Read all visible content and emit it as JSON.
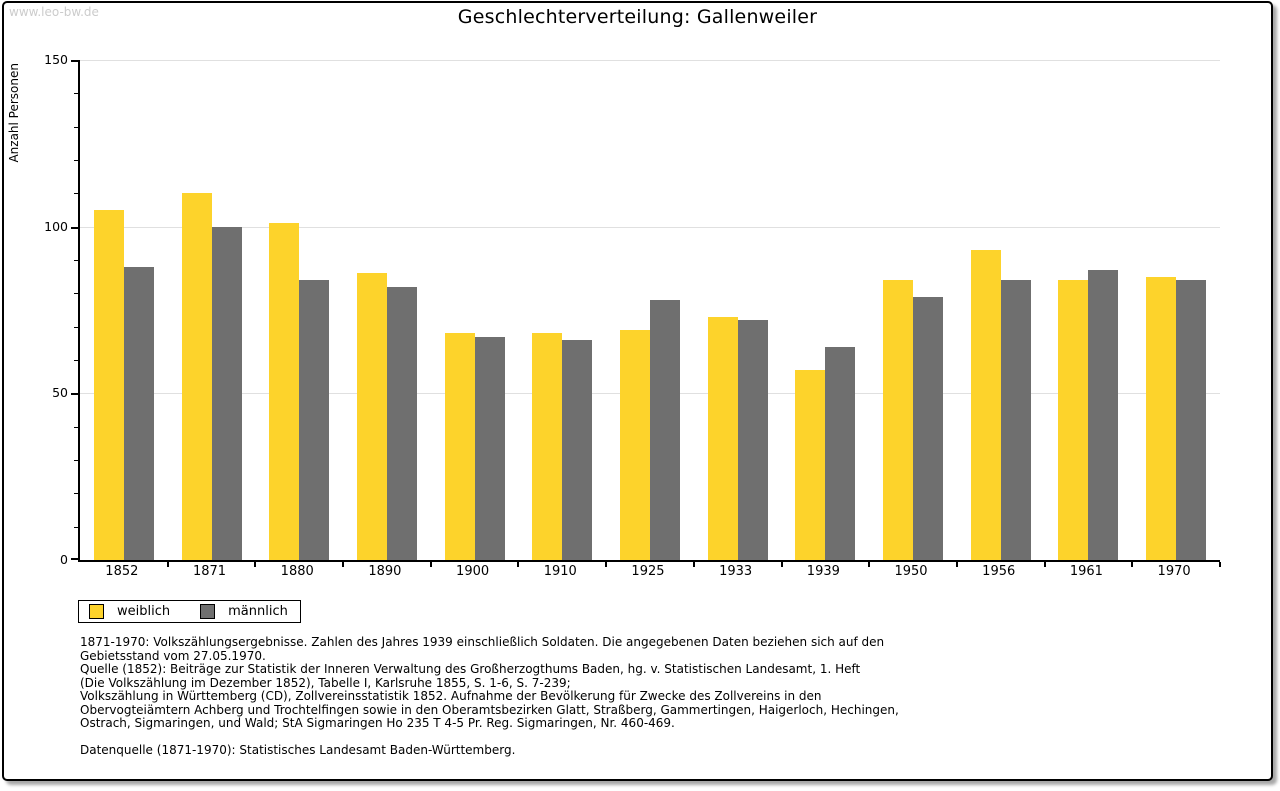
{
  "watermark": "www.leo-bw.de",
  "chart_data": {
    "type": "bar",
    "title": "Geschlechterverteilung: Gallenweiler",
    "xlabel": "",
    "ylabel": "Anzahl Personen",
    "ylim": [
      0,
      150
    ],
    "yticks": [
      0,
      50,
      100,
      150
    ],
    "ytick_minor_step": 10,
    "gridlines_at": [
      50,
      100,
      150
    ],
    "grid": true,
    "legend_position": "bottom-left",
    "categories": [
      "1852",
      "1871",
      "1880",
      "1890",
      "1900",
      "1910",
      "1925",
      "1933",
      "1939",
      "1950",
      "1956",
      "1961",
      "1970"
    ],
    "series": [
      {
        "key": "weiblich",
        "name": "weiblich",
        "color": "#fdd32b",
        "values": [
          105,
          110,
          101,
          86,
          68,
          68,
          69,
          73,
          57,
          84,
          93,
          84,
          85
        ]
      },
      {
        "key": "maennlich",
        "name": "männlich",
        "color": "#6f6f6f",
        "values": [
          88,
          100,
          84,
          82,
          67,
          66,
          78,
          72,
          64,
          79,
          84,
          87,
          84
        ]
      }
    ]
  },
  "footnotes": {
    "lines": [
      "1871-1970: Volkszählungsergebnisse. Zahlen des Jahres 1939 einschließlich Soldaten. Die angegebenen Daten beziehen sich auf den",
      "Gebietsstand vom 27.05.1970.",
      "Quelle (1852): Beiträge zur Statistik der Inneren Verwaltung des Großherzogthums Baden, hg. v. Statistischen Landesamt, 1. Heft",
      "(Die Volkszählung im Dezember 1852), Tabelle I, Karlsruhe 1855, S. 1-6, S. 7-239;",
      "Volkszählung in Württemberg (CD), Zollvereinsstatistik 1852. Aufnahme der Bevölkerung für Zwecke des Zollvereins in den",
      "Obervogteiämtern Achberg und Trochtelfingen sowie in den Oberamtsbezirken Glatt, Straßberg, Gammertingen, Haigerloch, Hechingen,",
      "Ostrach, Sigmaringen, und Wald; StA Sigmaringen Ho 235 T 4-5 Pr. Reg. Sigmaringen, Nr. 460-469.",
      "",
      "Datenquelle (1871-1970): Statistisches Landesamt Baden-Württemberg."
    ]
  },
  "colors": {
    "background": "#ffffff",
    "axis": "#000000",
    "grid": "#e0e0e0",
    "watermark": "#cccccc",
    "female_bar": "#fdd32b",
    "male_bar": "#6f6f6f"
  }
}
